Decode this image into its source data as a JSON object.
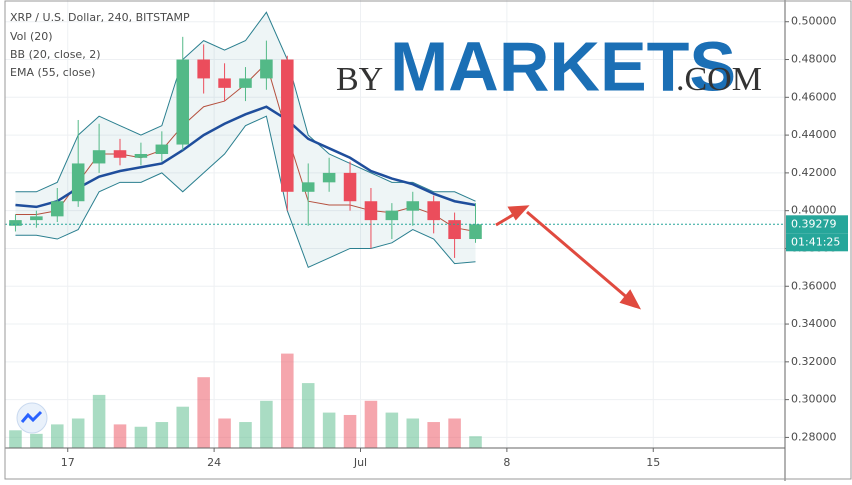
{
  "chart_data": {
    "type": "candlestick",
    "title": "XRP / U.S. Dollar, 240, BITSTAMP",
    "legend_items": [
      "Vol (20)",
      "BB (20, close, 2)",
      "EMA (55, close)"
    ],
    "watermark": {
      "prefix": "BY",
      "main": "MARKETS",
      "suffix": ".COM"
    },
    "x": [
      -2.5,
      -1.5,
      -0.5,
      0.5,
      1.5,
      2.5,
      3.5,
      4.5,
      5.5,
      6.5,
      7.5,
      8.5,
      9.5,
      10.5,
      11.5,
      12.5,
      13.5,
      14.5,
      15.5,
      16.5,
      17.5,
      18.5,
      19.5
    ],
    "open": [
      0.392,
      0.395,
      0.397,
      0.405,
      0.425,
      0.432,
      0.428,
      0.43,
      0.435,
      0.48,
      0.47,
      0.465,
      0.47,
      0.48,
      0.41,
      0.415,
      0.42,
      0.405,
      0.395,
      0.4,
      0.405,
      0.395,
      0.385
    ],
    "close": [
      0.395,
      0.397,
      0.405,
      0.425,
      0.432,
      0.428,
      0.43,
      0.435,
      0.48,
      0.47,
      0.465,
      0.47,
      0.48,
      0.41,
      0.415,
      0.42,
      0.405,
      0.395,
      0.4,
      0.405,
      0.395,
      0.385,
      0.39279
    ],
    "high": [
      0.398,
      0.4,
      0.412,
      0.448,
      0.446,
      0.438,
      0.436,
      0.442,
      0.492,
      0.488,
      0.478,
      0.476,
      0.49,
      0.482,
      0.425,
      0.428,
      0.426,
      0.412,
      0.404,
      0.41,
      0.408,
      0.399,
      0.404
    ],
    "low": [
      0.389,
      0.391,
      0.394,
      0.402,
      0.42,
      0.424,
      0.424,
      0.426,
      0.432,
      0.462,
      0.458,
      0.458,
      0.464,
      0.4,
      0.392,
      0.41,
      0.4,
      0.38,
      0.385,
      0.392,
      0.388,
      0.375,
      0.383
    ],
    "up_color": "#53b987",
    "down_color": "#eb4d5c",
    "volume": [
      15,
      12,
      20,
      25,
      45,
      20,
      18,
      22,
      35,
      60,
      25,
      22,
      40,
      80,
      55,
      30,
      28,
      40,
      30,
      25,
      22,
      25,
      10
    ],
    "y2lim": [
      0,
      100
    ],
    "bb": {
      "upper": [
        0.41,
        0.41,
        0.415,
        0.44,
        0.45,
        0.445,
        0.44,
        0.445,
        0.48,
        0.49,
        0.485,
        0.49,
        0.505,
        0.48,
        0.44,
        0.43,
        0.425,
        0.42,
        0.415,
        0.415,
        0.41,
        0.41,
        0.405
      ],
      "basis": [
        0.398,
        0.398,
        0.4,
        0.415,
        0.43,
        0.43,
        0.428,
        0.432,
        0.445,
        0.455,
        0.458,
        0.467,
        0.478,
        0.44,
        0.405,
        0.403,
        0.403,
        0.4,
        0.399,
        0.402,
        0.398,
        0.391,
        0.389
      ],
      "lower": [
        0.387,
        0.387,
        0.385,
        0.39,
        0.41,
        0.415,
        0.415,
        0.42,
        0.41,
        0.42,
        0.43,
        0.445,
        0.45,
        0.4,
        0.37,
        0.375,
        0.38,
        0.38,
        0.383,
        0.39,
        0.385,
        0.372,
        0.373
      ],
      "color": "#2a7f8f"
    },
    "ema": {
      "values": [
        0.403,
        0.402,
        0.405,
        0.412,
        0.418,
        0.421,
        0.423,
        0.425,
        0.432,
        0.44,
        0.446,
        0.451,
        0.455,
        0.448,
        0.438,
        0.433,
        0.428,
        0.421,
        0.417,
        0.414,
        0.409,
        0.405,
        0.403
      ],
      "color": "#1f4e9c"
    },
    "last_price": {
      "value": 0.39279,
      "label": "0.39279",
      "countdown": "01:41:25",
      "color": "#26a69a"
    },
    "xlim": [
      -3.0,
      34.3
    ],
    "xticks": [
      {
        "value": 0,
        "label": "17"
      },
      {
        "value": 7,
        "label": "24"
      },
      {
        "value": 14,
        "label": "Jul"
      },
      {
        "value": 21,
        "label": "8"
      },
      {
        "value": 28,
        "label": "15"
      }
    ],
    "ylim": [
      0.2744,
      0.5115
    ],
    "yticks": [
      {
        "value": 0.28,
        "label": "0.28000"
      },
      {
        "value": 0.3,
        "label": "0.30000"
      },
      {
        "value": 0.32,
        "label": "0.32000"
      },
      {
        "value": 0.34,
        "label": "0.34000"
      },
      {
        "value": 0.36,
        "label": "0.36000"
      },
      {
        "value": 0.38,
        "label": "0.38000"
      },
      {
        "value": 0.4,
        "label": "0.40000"
      },
      {
        "value": 0.42,
        "label": "0.42000"
      },
      {
        "value": 0.44,
        "label": "0.44000"
      },
      {
        "value": 0.46,
        "label": "0.46000"
      },
      {
        "value": 0.48,
        "label": "0.48000"
      },
      {
        "value": 0.5,
        "label": "0.50000"
      }
    ],
    "grid": true
  }
}
